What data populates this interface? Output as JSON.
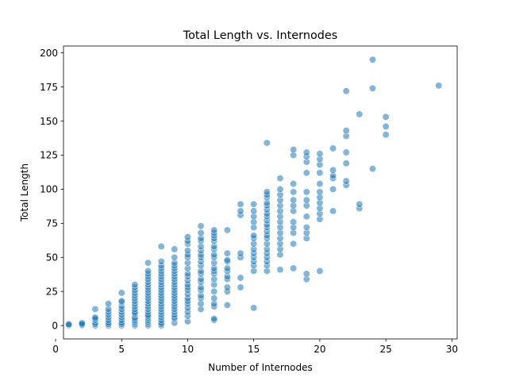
{
  "chart_data": {
    "type": "scatter",
    "title": "Total Length vs. Internodes",
    "xlabel": "Number of Internodes",
    "ylabel": "Total Length",
    "xlim": [
      0.6,
      30.4
    ],
    "ylim": [
      -9.8,
      205
    ],
    "xticks": [
      0,
      5,
      10,
      15,
      20,
      25,
      30
    ],
    "yticks": [
      0,
      25,
      50,
      75,
      100,
      125,
      150,
      175,
      200
    ],
    "grid": false,
    "legend": false,
    "marker_color": "#1f77b4",
    "marker_alpha": 0.55,
    "marker_edge_color": "#ffffff",
    "series": [
      {
        "points": [
          [
            1,
            0
          ],
          [
            1,
            0.6
          ],
          [
            1,
            1
          ],
          [
            2,
            0
          ],
          [
            2,
            0.5
          ],
          [
            2,
            1
          ],
          [
            2,
            1.8
          ],
          [
            3,
            0
          ],
          [
            3,
            1
          ],
          [
            3,
            2
          ],
          [
            3,
            4
          ],
          [
            3,
            5
          ],
          [
            3,
            6
          ],
          [
            3,
            12
          ],
          [
            4,
            0
          ],
          [
            4,
            1
          ],
          [
            4,
            2
          ],
          [
            4,
            4
          ],
          [
            4,
            6
          ],
          [
            4,
            8
          ],
          [
            4,
            10
          ],
          [
            4,
            12
          ],
          [
            4,
            16
          ],
          [
            5,
            0
          ],
          [
            5,
            1
          ],
          [
            5,
            2
          ],
          [
            5,
            4
          ],
          [
            5,
            6
          ],
          [
            5,
            8
          ],
          [
            5,
            10
          ],
          [
            5,
            12
          ],
          [
            5,
            14
          ],
          [
            5,
            17
          ],
          [
            5,
            18
          ],
          [
            5,
            24
          ],
          [
            6,
            0
          ],
          [
            6,
            1
          ],
          [
            6,
            2
          ],
          [
            6,
            3
          ],
          [
            6,
            4
          ],
          [
            6,
            5
          ],
          [
            6,
            6
          ],
          [
            6,
            8
          ],
          [
            6,
            9
          ],
          [
            6,
            10
          ],
          [
            6,
            12
          ],
          [
            6,
            14
          ],
          [
            6,
            16
          ],
          [
            6,
            18
          ],
          [
            6,
            20
          ],
          [
            6,
            22
          ],
          [
            6,
            24
          ],
          [
            6,
            26
          ],
          [
            6,
            28
          ],
          [
            6,
            30
          ],
          [
            7,
            0
          ],
          [
            7,
            1
          ],
          [
            7,
            2
          ],
          [
            7,
            3
          ],
          [
            7,
            4
          ],
          [
            7,
            5
          ],
          [
            7,
            6
          ],
          [
            7,
            7
          ],
          [
            7,
            8
          ],
          [
            7,
            10
          ],
          [
            7,
            12
          ],
          [
            7,
            14
          ],
          [
            7,
            16
          ],
          [
            7,
            18
          ],
          [
            7,
            20
          ],
          [
            7,
            22
          ],
          [
            7,
            24
          ],
          [
            7,
            26
          ],
          [
            7,
            28
          ],
          [
            7,
            30
          ],
          [
            7,
            32
          ],
          [
            7,
            34
          ],
          [
            7,
            36
          ],
          [
            7,
            38
          ],
          [
            7,
            40
          ],
          [
            7,
            46
          ],
          [
            8,
            0
          ],
          [
            8,
            1
          ],
          [
            8,
            2
          ],
          [
            8,
            4
          ],
          [
            8,
            6
          ],
          [
            8,
            8
          ],
          [
            8,
            10
          ],
          [
            8,
            12
          ],
          [
            8,
            14
          ],
          [
            8,
            16
          ],
          [
            8,
            18
          ],
          [
            8,
            20
          ],
          [
            8,
            22
          ],
          [
            8,
            24
          ],
          [
            8,
            26
          ],
          [
            8,
            28
          ],
          [
            8,
            30
          ],
          [
            8,
            32
          ],
          [
            8,
            34
          ],
          [
            8,
            36
          ],
          [
            8,
            38
          ],
          [
            8,
            40
          ],
          [
            8,
            42
          ],
          [
            8,
            44
          ],
          [
            8,
            47
          ],
          [
            8,
            58
          ],
          [
            9,
            2
          ],
          [
            9,
            5
          ],
          [
            9,
            6
          ],
          [
            9,
            8
          ],
          [
            9,
            10
          ],
          [
            9,
            12
          ],
          [
            9,
            14
          ],
          [
            9,
            16
          ],
          [
            9,
            18
          ],
          [
            9,
            20
          ],
          [
            9,
            22
          ],
          [
            9,
            24
          ],
          [
            9,
            26
          ],
          [
            9,
            28
          ],
          [
            9,
            30
          ],
          [
            9,
            32
          ],
          [
            9,
            34
          ],
          [
            9,
            36
          ],
          [
            9,
            38
          ],
          [
            9,
            40
          ],
          [
            9,
            42
          ],
          [
            9,
            44
          ],
          [
            9,
            46
          ],
          [
            9,
            50
          ],
          [
            9,
            56
          ],
          [
            10,
            3
          ],
          [
            10,
            7
          ],
          [
            10,
            10
          ],
          [
            10,
            13
          ],
          [
            10,
            16
          ],
          [
            10,
            18
          ],
          [
            10,
            20
          ],
          [
            10,
            23
          ],
          [
            10,
            26
          ],
          [
            10,
            28
          ],
          [
            10,
            30
          ],
          [
            10,
            33
          ],
          [
            10,
            36
          ],
          [
            10,
            38
          ],
          [
            10,
            42
          ],
          [
            10,
            46
          ],
          [
            10,
            50
          ],
          [
            10,
            52
          ],
          [
            10,
            55
          ],
          [
            10,
            60
          ],
          [
            10,
            62
          ],
          [
            10,
            65
          ],
          [
            11,
            12
          ],
          [
            11,
            16
          ],
          [
            11,
            20
          ],
          [
            11,
            22
          ],
          [
            11,
            26
          ],
          [
            11,
            28
          ],
          [
            11,
            32
          ],
          [
            11,
            34
          ],
          [
            11,
            38
          ],
          [
            11,
            40
          ],
          [
            11,
            44
          ],
          [
            11,
            47
          ],
          [
            11,
            50
          ],
          [
            11,
            52
          ],
          [
            11,
            55
          ],
          [
            11,
            58
          ],
          [
            11,
            62
          ],
          [
            11,
            64
          ],
          [
            11,
            68
          ],
          [
            11,
            73
          ],
          [
            12,
            4
          ],
          [
            12,
            5
          ],
          [
            12,
            14
          ],
          [
            12,
            16
          ],
          [
            12,
            20
          ],
          [
            12,
            25
          ],
          [
            12,
            30
          ],
          [
            12,
            34
          ],
          [
            12,
            38
          ],
          [
            12,
            40
          ],
          [
            12,
            42
          ],
          [
            12,
            46
          ],
          [
            12,
            50
          ],
          [
            12,
            52
          ],
          [
            12,
            56
          ],
          [
            12,
            58
          ],
          [
            12,
            62
          ],
          [
            12,
            64
          ],
          [
            12,
            66
          ],
          [
            12,
            68
          ],
          [
            12,
            70
          ],
          [
            13,
            15
          ],
          [
            13,
            25
          ],
          [
            13,
            28
          ],
          [
            13,
            34
          ],
          [
            13,
            36
          ],
          [
            13,
            40
          ],
          [
            13,
            42
          ],
          [
            13,
            47
          ],
          [
            13,
            48
          ],
          [
            13,
            53
          ],
          [
            13,
            70
          ],
          [
            14,
            28
          ],
          [
            14,
            35
          ],
          [
            14,
            50
          ],
          [
            14,
            53
          ],
          [
            14,
            81
          ],
          [
            14,
            84
          ],
          [
            14,
            89
          ],
          [
            15,
            13
          ],
          [
            15,
            40
          ],
          [
            15,
            44
          ],
          [
            15,
            47
          ],
          [
            15,
            50
          ],
          [
            15,
            53
          ],
          [
            15,
            56
          ],
          [
            15,
            60
          ],
          [
            15,
            64
          ],
          [
            15,
            66
          ],
          [
            15,
            72
          ],
          [
            15,
            76
          ],
          [
            15,
            80
          ],
          [
            15,
            84
          ],
          [
            15,
            89
          ],
          [
            16,
            40
          ],
          [
            16,
            44
          ],
          [
            16,
            47
          ],
          [
            16,
            50
          ],
          [
            16,
            53
          ],
          [
            16,
            56
          ],
          [
            16,
            60
          ],
          [
            16,
            64
          ],
          [
            16,
            66
          ],
          [
            16,
            69
          ],
          [
            16,
            72
          ],
          [
            16,
            74
          ],
          [
            16,
            77
          ],
          [
            16,
            80
          ],
          [
            16,
            82
          ],
          [
            16,
            85
          ],
          [
            16,
            88
          ],
          [
            16,
            90
          ],
          [
            16,
            94
          ],
          [
            16,
            96
          ],
          [
            16,
            98
          ],
          [
            16,
            134
          ],
          [
            17,
            41
          ],
          [
            17,
            52
          ],
          [
            17,
            56
          ],
          [
            17,
            60
          ],
          [
            17,
            64
          ],
          [
            17,
            68
          ],
          [
            17,
            72
          ],
          [
            17,
            76
          ],
          [
            17,
            80
          ],
          [
            17,
            84
          ],
          [
            17,
            88
          ],
          [
            17,
            92
          ],
          [
            17,
            96
          ],
          [
            17,
            100
          ],
          [
            17,
            108
          ],
          [
            18,
            42
          ],
          [
            18,
            60
          ],
          [
            18,
            68
          ],
          [
            18,
            72
          ],
          [
            18,
            76
          ],
          [
            18,
            84
          ],
          [
            18,
            88
          ],
          [
            18,
            92
          ],
          [
            18,
            98
          ],
          [
            18,
            104
          ],
          [
            18,
            125
          ],
          [
            18,
            129
          ],
          [
            19,
            34
          ],
          [
            19,
            38
          ],
          [
            19,
            64
          ],
          [
            19,
            68
          ],
          [
            19,
            72
          ],
          [
            19,
            80
          ],
          [
            19,
            88
          ],
          [
            19,
            92
          ],
          [
            19,
            98
          ],
          [
            19,
            112
          ],
          [
            19,
            120
          ],
          [
            19,
            124
          ],
          [
            19,
            127
          ],
          [
            20,
            40
          ],
          [
            20,
            78
          ],
          [
            20,
            82
          ],
          [
            20,
            86
          ],
          [
            20,
            90
          ],
          [
            20,
            94
          ],
          [
            20,
            98
          ],
          [
            20,
            104
          ],
          [
            20,
            112
          ],
          [
            20,
            118
          ],
          [
            20,
            122
          ],
          [
            20,
            126
          ],
          [
            21,
            84
          ],
          [
            21,
            100
          ],
          [
            21,
            108
          ],
          [
            21,
            110
          ],
          [
            21,
            114
          ],
          [
            21,
            130
          ],
          [
            22,
            103
          ],
          [
            22,
            106
          ],
          [
            22,
            119
          ],
          [
            22,
            127
          ],
          [
            22,
            139
          ],
          [
            22,
            143
          ],
          [
            22,
            172
          ],
          [
            23,
            86
          ],
          [
            23,
            89
          ],
          [
            23,
            155
          ],
          [
            24,
            115
          ],
          [
            24,
            174
          ],
          [
            24,
            195
          ],
          [
            25,
            140
          ],
          [
            25,
            146
          ],
          [
            25,
            153
          ],
          [
            29,
            176
          ]
        ]
      }
    ]
  }
}
